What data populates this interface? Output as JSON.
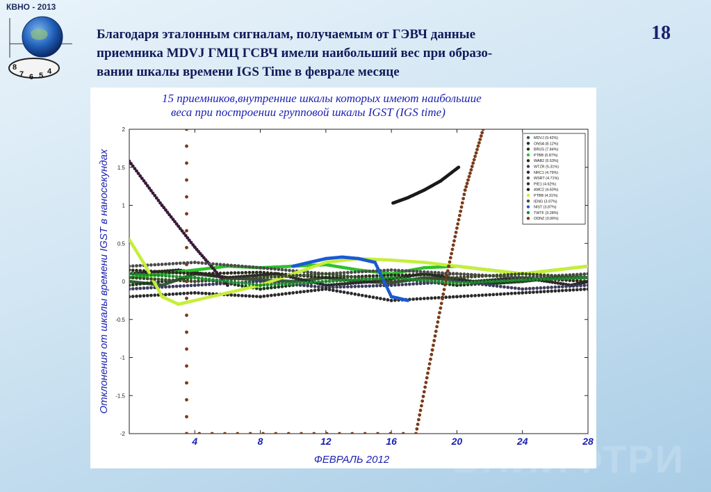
{
  "header": {
    "badge": "КВНО - 2013",
    "slide_number": "18",
    "title_lines": [
      "Благодаря эталонным сигналам, получаемым от ГЭВЧ данные",
      "приемника MDVJ ГМЦ ГСВЧ имели наибольший вес при образо-",
      "вании шкалы времени IGS Time в феврале месяце"
    ],
    "watermark": "ВНИИФТРИ"
  },
  "logo": {
    "digits": [
      "8",
      "7",
      "6",
      "5",
      "4"
    ]
  },
  "chart_data": {
    "type": "scatter",
    "title_lines": [
      "15 приемников,внутренние шкалы которых имеют наибольшие",
      "веса при построении групповой шкалы IGST (IGS time)"
    ],
    "ylabel": "Отклонения от шкалы времени IGST в наносекундах",
    "xlabel": "ФЕВРАЛЬ 2012",
    "x_ticks": [
      "4",
      "8",
      "12",
      "16",
      "20",
      "24",
      "28"
    ],
    "y_ticks": [
      "2",
      "1.5",
      "1",
      "0.5",
      "0",
      "-0.5",
      "-1",
      "-1.5",
      "-2"
    ],
    "xlim": [
      0,
      28
    ],
    "ylim": [
      -2,
      2
    ],
    "legend_position": "top-right",
    "colors": {
      "title": "#1a1fb0",
      "dark_series": "#2a1530",
      "brown_series": "#7a3a18",
      "green": "#3ec23a",
      "yellow_green": "#c8f03c",
      "blue": "#1a60d0",
      "olive": "#4a4a2a"
    },
    "series": [
      {
        "name": "MDVJ (9.42%)",
        "marker": "dot",
        "color": "#3a5a3a",
        "x": [
          0,
          2,
          4,
          6,
          8,
          10,
          12,
          14,
          16,
          18,
          20,
          22,
          24,
          26,
          28
        ],
        "y": [
          0.0,
          -0.05,
          0.1,
          0.05,
          0.02,
          0.0,
          0.05,
          0.0,
          -0.02,
          0.05,
          0.02,
          -0.03,
          0.0,
          0.05,
          0.05
        ]
      },
      {
        "name": "ONSA (8.12%)",
        "marker": "star",
        "color": "#2a2a2a",
        "x": [
          0,
          3,
          6,
          9,
          12,
          15,
          18,
          21,
          24,
          27,
          28
        ],
        "y": [
          0.1,
          0.15,
          0.05,
          0.1,
          -0.05,
          0.0,
          0.1,
          0.0,
          0.05,
          -0.05,
          0.0
        ]
      },
      {
        "name": "BRUS (7.84%)",
        "marker": "triangle-right",
        "color": "#1a3a1a",
        "x": [
          0,
          4,
          8,
          12,
          16,
          20,
          24,
          28
        ],
        "y": [
          -0.05,
          0.05,
          -0.1,
          0.0,
          0.05,
          -0.05,
          0.0,
          0.1
        ]
      },
      {
        "name": "PTBB (5.87%)",
        "marker": "plus",
        "color": "#2ec02e",
        "x": [
          0,
          2,
          4,
          6,
          8,
          10,
          12,
          14,
          16,
          18,
          20,
          22,
          24,
          26,
          28
        ],
        "y": [
          0.05,
          0.1,
          0.15,
          0.2,
          0.18,
          0.2,
          0.22,
          0.15,
          0.1,
          0.18,
          0.2,
          0.15,
          0.1,
          0.15,
          0.2
        ]
      },
      {
        "name": "WAB2 (5.53%)",
        "marker": "dot",
        "color": "#2a2a1a",
        "x": [
          0,
          4,
          8,
          12,
          16,
          20,
          24,
          28
        ],
        "y": [
          0.15,
          0.1,
          0.12,
          0.05,
          0.08,
          0.1,
          0.05,
          0.0
        ]
      },
      {
        "name": "WTZR (5.31%)",
        "marker": "triangle-right",
        "color": "#3a3a5a",
        "x": [
          0,
          4,
          8,
          12,
          16,
          20,
          24,
          28
        ],
        "y": [
          -0.1,
          -0.05,
          0.0,
          -0.08,
          -0.05,
          0.0,
          -0.1,
          -0.05
        ]
      },
      {
        "name": "NRC1 (4.79%)",
        "marker": "star",
        "color": "#3a1a3a",
        "x": [
          0,
          2,
          4,
          6
        ],
        "y": [
          1.58,
          1.0,
          0.45,
          -0.05
        ]
      },
      {
        "name": "WSRT (4.71%)",
        "marker": "triangle-left",
        "color": "#4a4a4a",
        "x": [
          0,
          4,
          8,
          12,
          16,
          20,
          24,
          28
        ],
        "y": [
          0.2,
          0.25,
          0.18,
          0.1,
          0.15,
          0.1,
          0.05,
          0.1
        ]
      },
      {
        "name": "PIE1 (4.62%)",
        "marker": "diamond",
        "color": "#2a2a2a",
        "x": [
          0,
          4,
          8,
          12,
          16,
          20,
          24,
          28
        ],
        "y": [
          -0.2,
          -0.15,
          -0.2,
          -0.1,
          -0.25,
          -0.2,
          -0.15,
          -0.1
        ]
      },
      {
        "name": "AMC2 (4.60%)",
        "marker": "square",
        "color": "#1a1a1a",
        "x": [
          16.1,
          17,
          18,
          19,
          20.1
        ],
        "y": [
          1.03,
          1.1,
          1.2,
          1.32,
          1.5
        ]
      },
      {
        "name": "PTBB (4.31%)",
        "marker": "dot",
        "color": "#c6ee3a",
        "x": [
          0,
          1,
          2,
          3,
          4,
          6,
          8,
          10,
          12,
          14,
          16,
          18,
          20,
          22,
          24,
          26,
          28
        ],
        "y": [
          0.55,
          0.2,
          -0.2,
          -0.3,
          -0.25,
          -0.15,
          -0.05,
          0.1,
          0.25,
          0.3,
          0.28,
          0.25,
          0.2,
          0.15,
          0.1,
          0.15,
          0.2
        ]
      },
      {
        "name": "IENG (3.97%)",
        "marker": "triangle-up",
        "color": "#3a4a2a",
        "x": [
          0,
          4,
          8,
          12,
          16,
          20,
          24,
          28
        ],
        "y": [
          0.05,
          0.0,
          0.05,
          0.1,
          0.0,
          0.05,
          0.1,
          0.05
        ]
      },
      {
        "name": "NIST (3.87%)",
        "marker": "dot",
        "color": "#1a5ad0",
        "x": [
          10,
          11,
          12,
          13,
          14,
          15,
          16,
          17
        ],
        "y": [
          0.2,
          0.25,
          0.3,
          0.32,
          0.3,
          0.25,
          -0.2,
          -0.25
        ]
      },
      {
        "name": "TWTF (3.28%)",
        "marker": "diamond",
        "color": "#1a8a2a",
        "x": [
          0,
          4,
          8,
          12,
          16,
          20,
          24,
          28
        ],
        "y": [
          0.1,
          0.05,
          -0.05,
          0.0,
          0.05,
          -0.02,
          0.02,
          0.05
        ]
      },
      {
        "name": "ODNZ (3.06%)",
        "marker": "triangle-left",
        "color": "#7a3a18",
        "x": [
          3.5,
          3.5,
          17.5,
          18.5,
          19.5,
          20.5,
          21.6
        ],
        "y": [
          2.0,
          -2.0,
          -2.0,
          -0.9,
          0.2,
          1.2,
          2.0
        ]
      }
    ]
  }
}
